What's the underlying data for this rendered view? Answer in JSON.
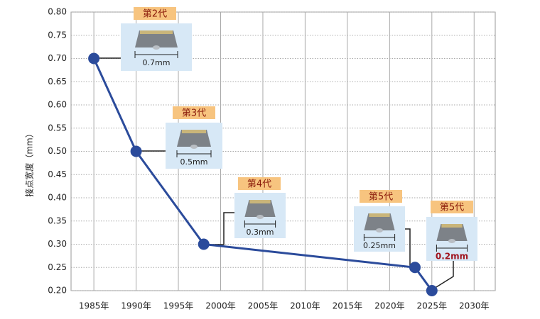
{
  "chart_data": {
    "type": "line",
    "y_label": "接点宽度（mm）",
    "x": [
      1985,
      1990,
      1998,
      2023,
      2025
    ],
    "series": [
      {
        "color": "#2b4b9b",
        "values": [
          0.7,
          0.5,
          0.3,
          0.25,
          0.2
        ]
      }
    ],
    "xlim": [
      1982.3,
      2032.5
    ],
    "xticks": [
      {
        "value": 1985,
        "label": "1985年"
      },
      {
        "value": 1990,
        "label": "1990年"
      },
      {
        "value": 1995,
        "label": "1995年"
      },
      {
        "value": 2000,
        "label": "2000年"
      },
      {
        "value": 2005,
        "label": "2005年"
      },
      {
        "value": 2010,
        "label": "2010年"
      },
      {
        "value": 2015,
        "label": "2015年"
      },
      {
        "value": 2020,
        "label": "2020年"
      },
      {
        "value": 2025,
        "label": "2025年"
      },
      {
        "value": 2030,
        "label": "2030年"
      }
    ],
    "ylim": [
      0.2,
      0.8
    ],
    "yticks": [
      {
        "value": 0.2,
        "label": "0.20"
      },
      {
        "value": 0.25,
        "label": "0.25"
      },
      {
        "value": 0.3,
        "label": "0.30"
      },
      {
        "value": 0.35,
        "label": "0.35"
      },
      {
        "value": 0.4,
        "label": "0.40"
      },
      {
        "value": 0.45,
        "label": "0.45"
      },
      {
        "value": 0.5,
        "label": "0.50"
      },
      {
        "value": 0.55,
        "label": "0.55"
      },
      {
        "value": 0.6,
        "label": "0.60"
      },
      {
        "value": 0.65,
        "label": "0.65"
      },
      {
        "value": 0.7,
        "label": "0.70"
      },
      {
        "value": 0.75,
        "label": "0.75"
      },
      {
        "value": 0.8,
        "label": "0.80"
      }
    ],
    "grid": true,
    "annotations": [
      {
        "generation": "第2代",
        "width": "0.7mm"
      },
      {
        "generation": "第3代",
        "width": "0.5mm"
      },
      {
        "generation": "第4代",
        "width": "0.3mm"
      },
      {
        "generation": "第5代",
        "width": "0.25mm"
      },
      {
        "generation": "第5代",
        "width": "0.2mm"
      }
    ]
  }
}
